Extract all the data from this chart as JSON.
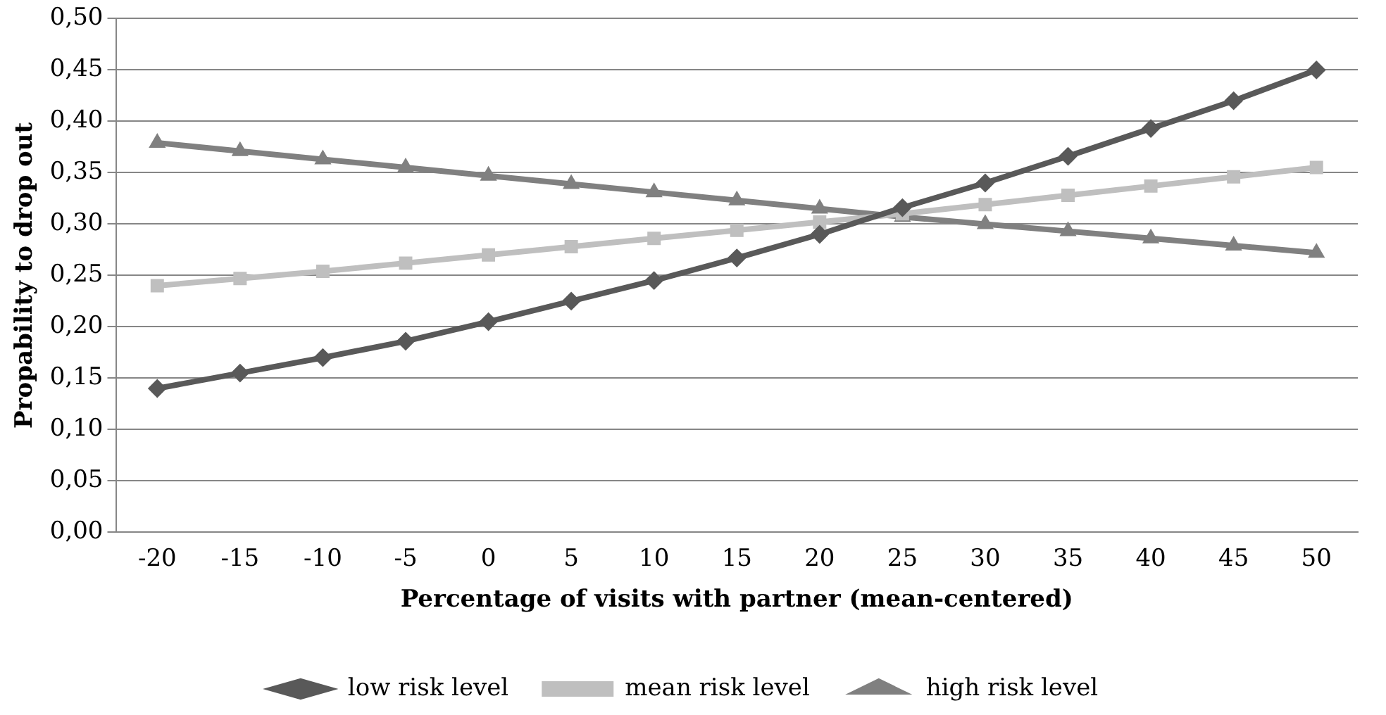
{
  "chart_data": {
    "type": "line",
    "xlabel": "Percentage of visits with partner (mean-centered)",
    "ylabel": "Propability to drop out",
    "categories": [
      "-20",
      "-15",
      "-10",
      "-5",
      "0",
      "5",
      "10",
      "15",
      "20",
      "25",
      "30",
      "35",
      "40",
      "45",
      "50"
    ],
    "series": [
      {
        "name": "low risk level",
        "color": "#595959",
        "marker": "diamond",
        "values": [
          0.14,
          0.155,
          0.17,
          0.186,
          0.205,
          0.225,
          0.245,
          0.267,
          0.29,
          0.316,
          0.34,
          0.366,
          0.393,
          0.42,
          0.45
        ]
      },
      {
        "name": "mean risk level",
        "color": "#bfbfbf",
        "marker": "square",
        "values": [
          0.24,
          0.247,
          0.254,
          0.262,
          0.27,
          0.278,
          0.286,
          0.294,
          0.302,
          0.31,
          0.319,
          0.328,
          0.337,
          0.346,
          0.355
        ]
      },
      {
        "name": "high risk level",
        "color": "#808080",
        "marker": "triangle",
        "values": [
          0.379,
          0.371,
          0.363,
          0.355,
          0.347,
          0.339,
          0.331,
          0.323,
          0.315,
          0.307,
          0.3,
          0.293,
          0.286,
          0.279,
          0.272
        ]
      }
    ],
    "ylim": [
      0,
      0.5
    ],
    "yticks": [
      {
        "value": 0,
        "label": "0,00"
      },
      {
        "value": 0.05,
        "label": "0,05"
      },
      {
        "value": 0.1,
        "label": "0,10"
      },
      {
        "value": 0.15,
        "label": "0,15"
      },
      {
        "value": 0.2,
        "label": "0,20"
      },
      {
        "value": 0.25,
        "label": "0,25"
      },
      {
        "value": 0.3,
        "label": "0,30"
      },
      {
        "value": 0.35,
        "label": "0,35"
      },
      {
        "value": 0.4,
        "label": "0,40"
      },
      {
        "value": 0.45,
        "label": "0,45"
      },
      {
        "value": 0.5,
        "label": "0,50"
      }
    ],
    "grid": "y",
    "legend": "bottom"
  }
}
